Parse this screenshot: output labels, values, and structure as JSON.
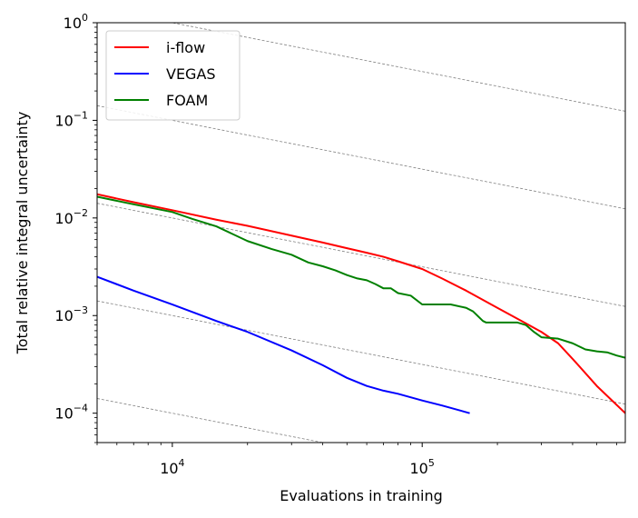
{
  "chart_data": {
    "type": "line",
    "title": "",
    "xlabel": "Evaluations in training",
    "ylabel": "Total relative integral uncertainty",
    "xscale": "log",
    "yscale": "log",
    "xlim": [
      5000,
      650000
    ],
    "ylim": [
      5e-05,
      1
    ],
    "x_tick_labels": [
      {
        "value": 10000,
        "base": "10",
        "exp": "4"
      },
      {
        "value": 100000,
        "base": "10",
        "exp": "5"
      }
    ],
    "y_tick_labels": [
      {
        "value": 1,
        "base": "10",
        "exp": "0"
      },
      {
        "value": 0.1,
        "base": "10",
        "exp": "−1"
      },
      {
        "value": 0.01,
        "base": "10",
        "exp": "−2"
      },
      {
        "value": 0.001,
        "base": "10",
        "exp": "−3"
      },
      {
        "value": 0.0001,
        "base": "10",
        "exp": "−4"
      }
    ],
    "legend_position": "top-left",
    "reference_lines": {
      "description": "dashed gray 1/sqrt(N) scaling guides",
      "slope": -0.5,
      "values_at_5000": [
        1.414,
        0.1414,
        0.01414,
        0.001414,
        0.0001414
      ],
      "color": "#808080"
    },
    "series": [
      {
        "name": "i-flow",
        "color": "#ff0000",
        "x": [
          5000,
          7000,
          10000,
          15000,
          20000,
          30000,
          40000,
          50000,
          60000,
          70000,
          80000,
          100000,
          120000,
          150000,
          200000,
          250000,
          300000,
          350000,
          400000,
          500000,
          650000
        ],
        "y": [
          0.0175,
          0.0145,
          0.012,
          0.0096,
          0.0083,
          0.0066,
          0.0056,
          0.0049,
          0.0044,
          0.004,
          0.0036,
          0.003,
          0.0024,
          0.0018,
          0.0012,
          0.00088,
          0.00068,
          0.00052,
          0.00036,
          0.00019,
          0.0001
        ]
      },
      {
        "name": "VEGAS",
        "color": "#0000ff",
        "x": [
          5000,
          7000,
          10000,
          15000,
          20000,
          30000,
          40000,
          50000,
          60000,
          70000,
          80000,
          100000,
          120000,
          155000
        ],
        "y": [
          0.0025,
          0.0018,
          0.0013,
          0.00088,
          0.00068,
          0.00044,
          0.00031,
          0.00023,
          0.00019,
          0.00017,
          0.000158,
          0.000135,
          0.00012,
          0.0001
        ]
      },
      {
        "name": "FOAM",
        "color": "#008000",
        "x": [
          5000,
          7000,
          10000,
          12000,
          15000,
          20000,
          25000,
          30000,
          35000,
          40000,
          45000,
          50000,
          55000,
          60000,
          65000,
          70000,
          75000,
          80000,
          90000,
          100000,
          110000,
          120000,
          125000,
          130000,
          150000,
          160000,
          175000,
          180000,
          200000,
          240000,
          260000,
          280000,
          300000,
          350000,
          400000,
          450000,
          500000,
          550000,
          600000,
          650000
        ],
        "y": [
          0.0165,
          0.0138,
          0.0115,
          0.0098,
          0.0082,
          0.0058,
          0.0048,
          0.0042,
          0.0035,
          0.0032,
          0.0029,
          0.0026,
          0.0024,
          0.0023,
          0.0021,
          0.0019,
          0.0019,
          0.0017,
          0.0016,
          0.0013,
          0.0013,
          0.0013,
          0.0013,
          0.0013,
          0.0012,
          0.0011,
          0.00088,
          0.00085,
          0.00085,
          0.00085,
          0.0008,
          0.00068,
          0.0006,
          0.00058,
          0.00052,
          0.00045,
          0.00043,
          0.00042,
          0.00039,
          0.00037
        ]
      }
    ]
  }
}
